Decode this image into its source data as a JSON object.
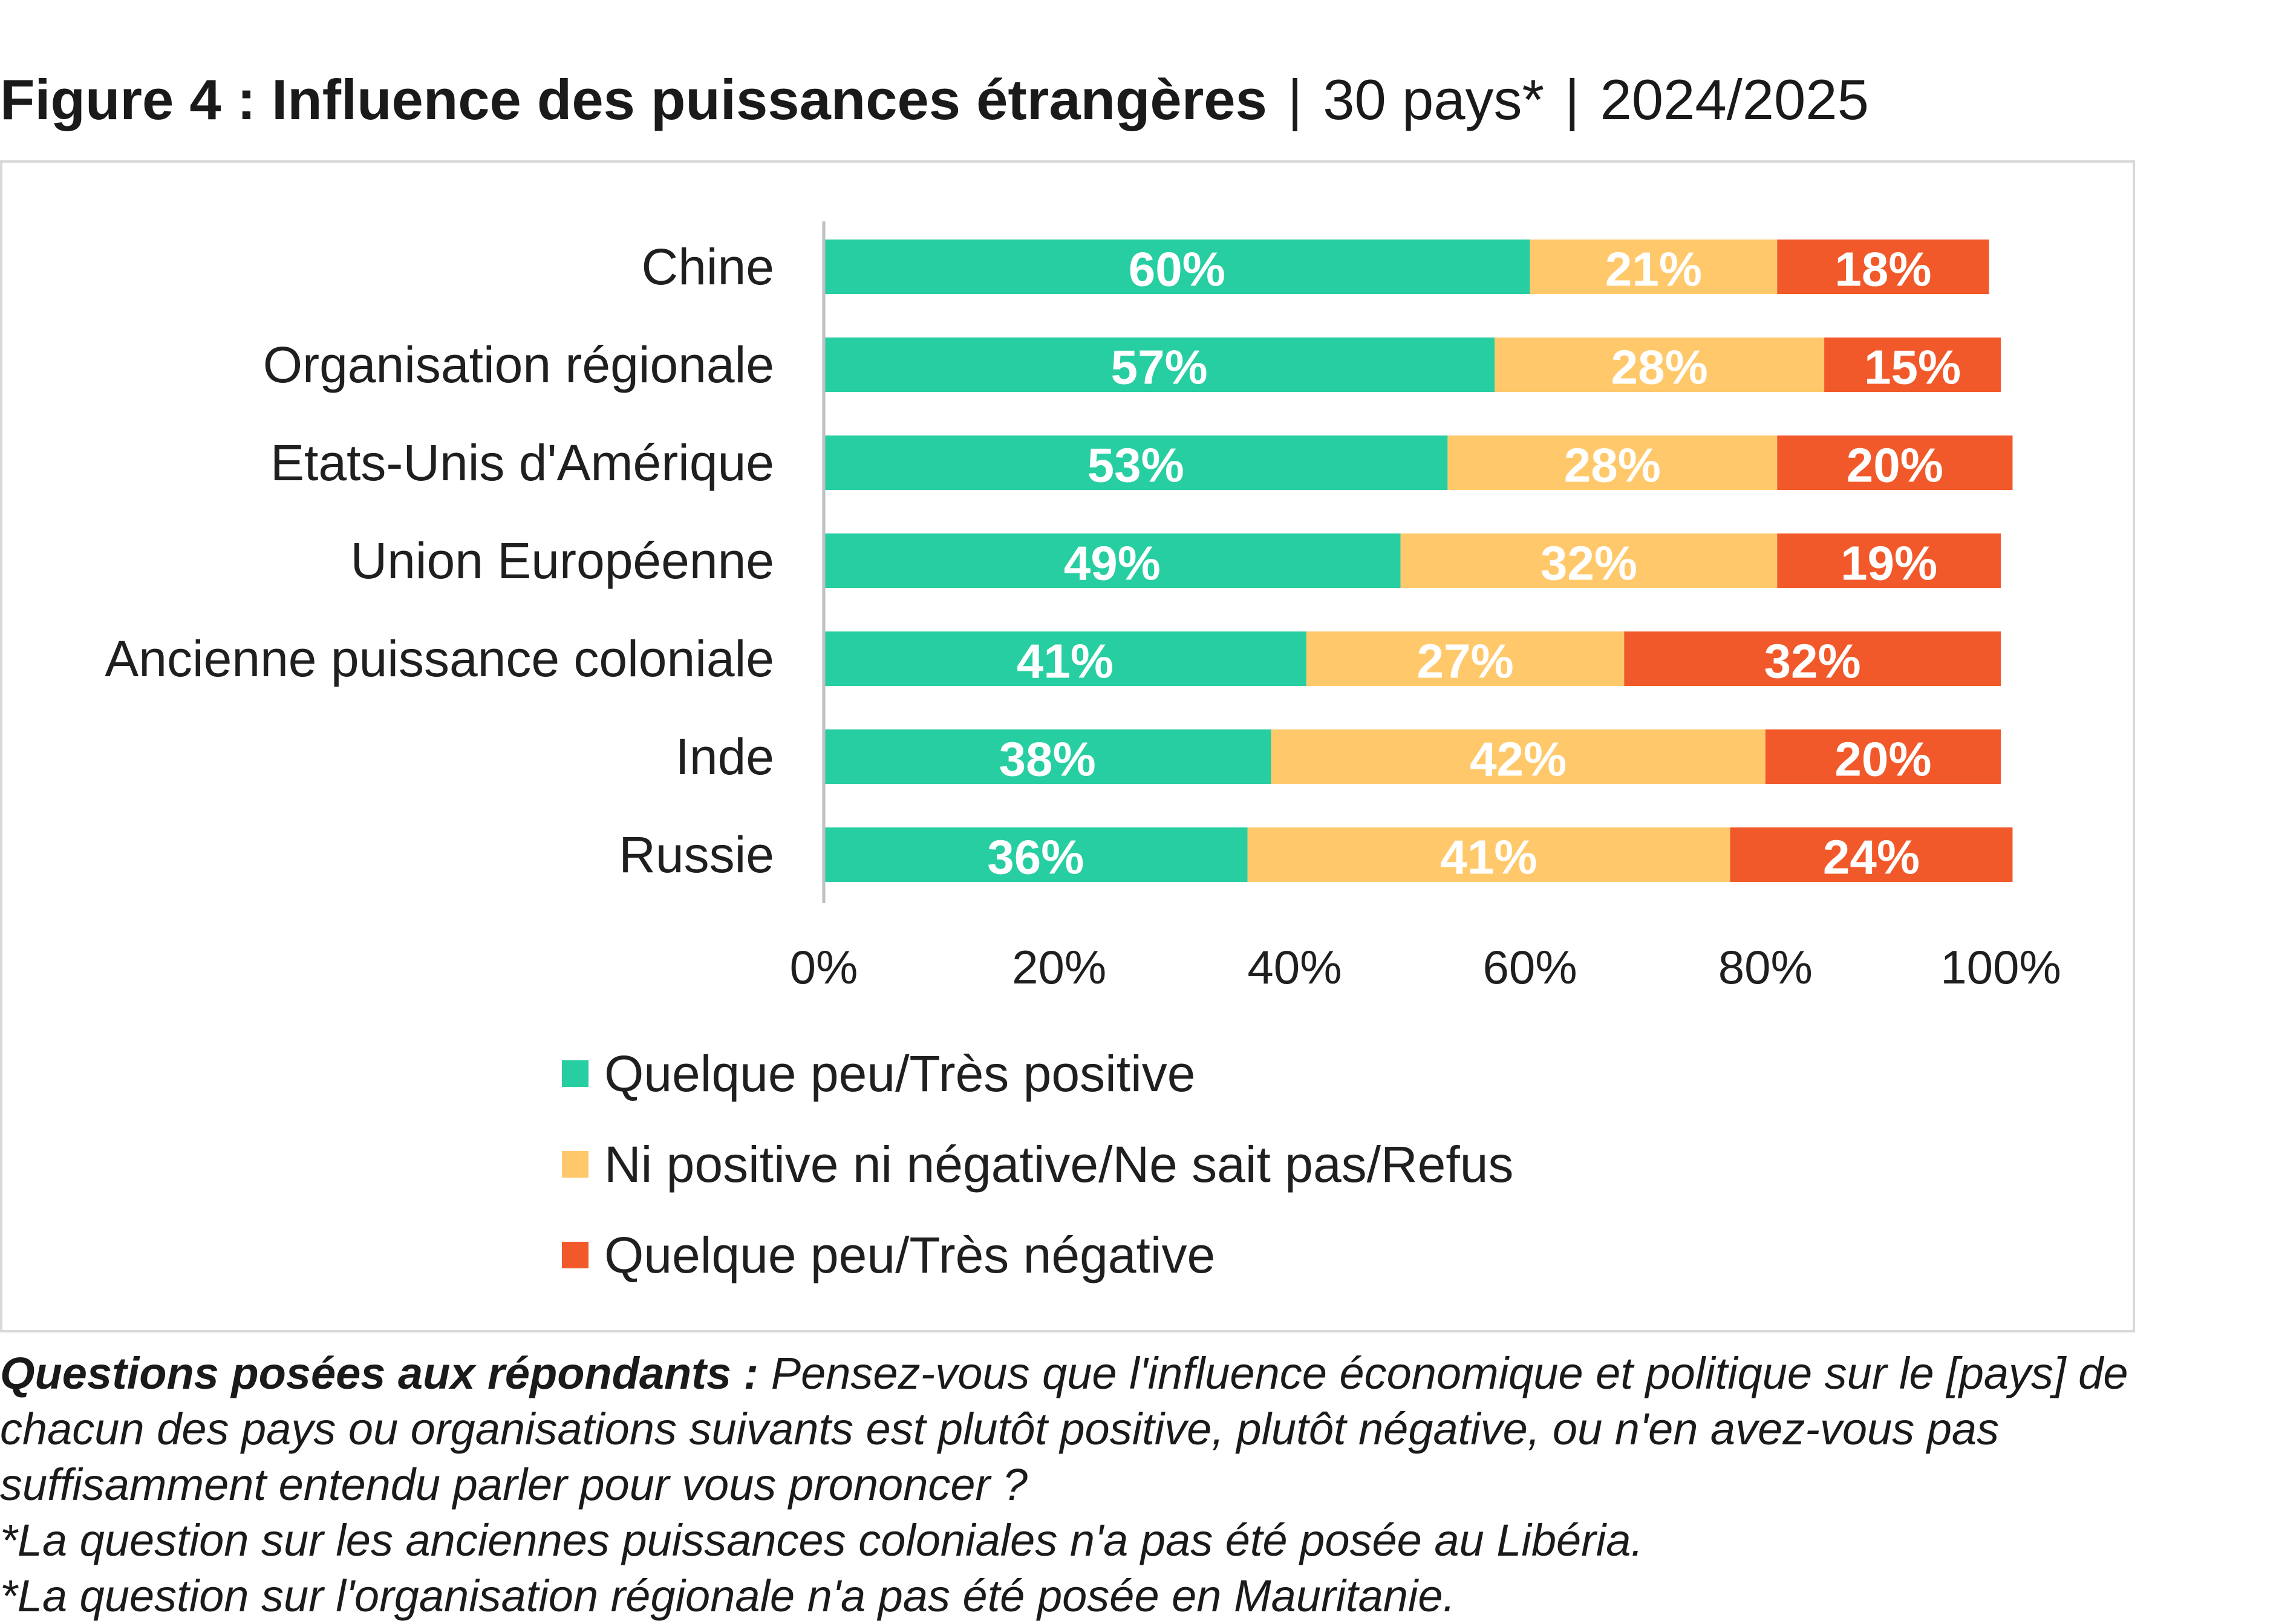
{
  "title": {
    "main": "Figure 4 : Influence des puissances étrangères",
    "sep1": "|",
    "countries": "30 pays*",
    "sep2": "|",
    "period": "2024/2025"
  },
  "notes": {
    "question_label": "Questions posées aux répondants :",
    "question_text": "Pensez-vous que l'influence économique et politique sur le [pays] de chacun des pays ou organisations suivants est plutôt positive, plutôt négative, ou n'en avez-vous pas suffisamment entendu parler pour vous prononcer ?",
    "note1": "*La question sur les anciennes puissances coloniales n'a pas été posée au Libéria.",
    "note2": "*La question sur l'organisation régionale n'a pas été posée en Mauritanie."
  },
  "chart_data": {
    "type": "bar",
    "orientation": "horizontal",
    "stacked": true,
    "categories": [
      "Chine",
      "Organisation régionale",
      "Etats-Unis d'Amérique",
      "Union Européenne",
      "Ancienne puissance coloniale",
      "Inde",
      "Russie"
    ],
    "series": [
      {
        "name": "Quelque peu/Très positive",
        "color": "#26cea1",
        "values": [
          60,
          57,
          53,
          49,
          41,
          38,
          36
        ],
        "labels": [
          "60%",
          "57%",
          "53%",
          "49%",
          "41%",
          "38%",
          "36%"
        ]
      },
      {
        "name": "Ni positive ni négative/Ne sait pas/Refus",
        "color": "#ffc96b",
        "values": [
          21,
          28,
          28,
          32,
          27,
          42,
          41
        ],
        "labels": [
          "21%",
          "28%",
          "28%",
          "32%",
          "27%",
          "42%",
          "41%"
        ]
      },
      {
        "name": "Quelque peu/Très négative",
        "color": "#f2592a",
        "values": [
          18,
          15,
          20,
          19,
          32,
          20,
          24
        ],
        "labels": [
          "18%",
          "15%",
          "20%",
          "19%",
          "32%",
          "20%",
          "24%"
        ]
      }
    ],
    "xlim": [
      0,
      100
    ],
    "x_ticks": [
      "0%",
      "20%",
      "40%",
      "60%",
      "80%",
      "100%"
    ],
    "grid": false,
    "legend_position": "bottom"
  }
}
